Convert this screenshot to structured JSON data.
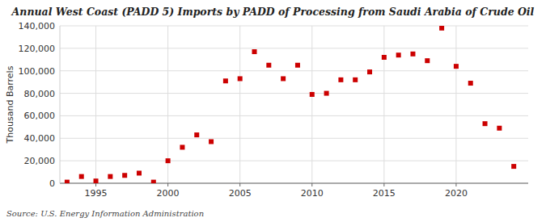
{
  "chart_data": {
    "type": "scatter",
    "title": "Annual West Coast (PADD 5) Imports by PADD of Processing from Saudi Arabia of Crude Oil",
    "ylabel": "Thousand Barrels",
    "source": "Source: U.S. Energy Information Administration",
    "x": [
      1993,
      1994,
      1995,
      1996,
      1997,
      1998,
      1999,
      2000,
      2001,
      2002,
      2003,
      2004,
      2005,
      2006,
      2007,
      2008,
      2009,
      2010,
      2011,
      2012,
      2013,
      2014,
      2015,
      2016,
      2017,
      2018,
      2019,
      2020,
      2021,
      2022,
      2023,
      2024
    ],
    "values": [
      1000,
      6000,
      2000,
      6000,
      7000,
      9000,
      1000,
      20000,
      32000,
      43000,
      37000,
      91000,
      93000,
      117000,
      105000,
      93000,
      105000,
      79000,
      80000,
      92000,
      92000,
      99000,
      112000,
      114000,
      115000,
      109000,
      138000,
      104000,
      89000,
      53000,
      49000,
      15000
    ],
    "color": "#cc0000",
    "marker": "square",
    "xlim": [
      1992.5,
      2025
    ],
    "ylim": [
      0,
      140000
    ],
    "xticks": [
      1995,
      2000,
      2005,
      2010,
      2015,
      2020
    ],
    "yticks": [
      0,
      {
        "value": 20000,
        "label": "20,000"
      },
      {
        "value": 40000,
        "label": "40,000"
      },
      {
        "value": 60000,
        "label": "60,000"
      },
      {
        "value": 80000,
        "label": "80,000"
      },
      {
        "value": 100000,
        "label": "100,000"
      },
      {
        "value": 120000,
        "label": "120,000"
      },
      {
        "value": 140000,
        "label": "140,000"
      }
    ],
    "grid": true
  }
}
